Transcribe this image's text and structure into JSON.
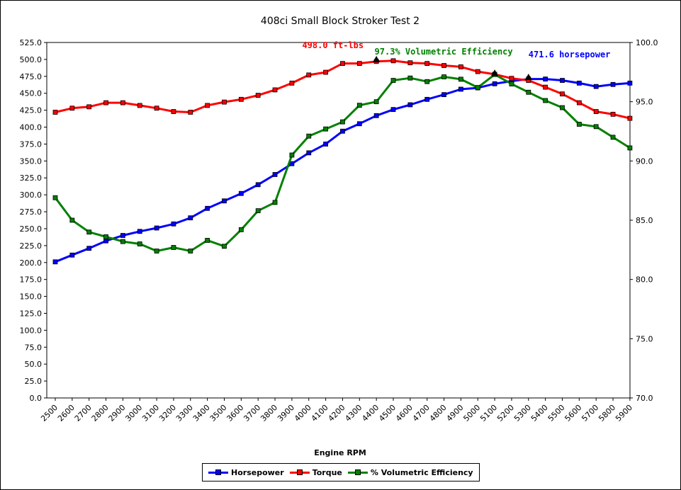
{
  "chart_data": {
    "type": "line",
    "title": "408ci Small Block Stroker Test 2",
    "xlabel": "Engine RPM",
    "categories": [
      "2500",
      "2600",
      "2700",
      "2800",
      "2900",
      "3000",
      "3100",
      "3200",
      "3300",
      "3400",
      "3500",
      "3600",
      "3700",
      "3800",
      "3900",
      "4000",
      "4100",
      "4200",
      "4300",
      "4400",
      "4500",
      "4600",
      "4700",
      "4800",
      "4900",
      "5000",
      "5100",
      "5200",
      "5300",
      "5400",
      "5500",
      "5600",
      "5700",
      "5800",
      "5900"
    ],
    "y_left": {
      "min": 0,
      "max": 525,
      "step": 25,
      "ticks": [
        "0.0",
        "25.0",
        "50.0",
        "75.0",
        "100.0",
        "125.0",
        "150.0",
        "175.0",
        "200.0",
        "225.0",
        "250.0",
        "275.0",
        "300.0",
        "325.0",
        "350.0",
        "375.0",
        "400.0",
        "425.0",
        "450.0",
        "475.0",
        "500.0",
        "525.0"
      ]
    },
    "y_right": {
      "min": 70,
      "max": 100,
      "step": 5,
      "ticks": [
        "70.0",
        "75.0",
        "80.0",
        "85.0",
        "90.0",
        "95.0",
        "100.0"
      ]
    },
    "grid": false,
    "legend_position": "bottom",
    "series": [
      {
        "name": "Horsepower",
        "axis": "left",
        "color": "#0000ff",
        "values": [
          201,
          211,
          221,
          232,
          240,
          246,
          251,
          257,
          266,
          280,
          291,
          302,
          315,
          330,
          346,
          362,
          375,
          394,
          405,
          417,
          426,
          433,
          441,
          448,
          456,
          458,
          464,
          468,
          471,
          471,
          469,
          465,
          460,
          463,
          465
        ]
      },
      {
        "name": "Torque",
        "axis": "left",
        "color": "#ff0000",
        "values": [
          422,
          428,
          430,
          436,
          436,
          432,
          428,
          423,
          422,
          432,
          437,
          441,
          447,
          455,
          465,
          477,
          481,
          494,
          494,
          497,
          498,
          495,
          494,
          491,
          489,
          482,
          478,
          472,
          469,
          459,
          449,
          436,
          423,
          419,
          413
        ]
      },
      {
        "name": "% Volumetric Efficiency",
        "axis": "right",
        "color": "#008000",
        "values": [
          86.9,
          85.0,
          84.0,
          83.6,
          83.2,
          83.0,
          82.4,
          82.7,
          82.4,
          83.3,
          82.8,
          84.2,
          85.8,
          86.5,
          90.5,
          92.1,
          92.7,
          93.3,
          94.7,
          95.0,
          96.8,
          97.0,
          96.7,
          97.1,
          96.9,
          96.2,
          97.3,
          96.5,
          95.8,
          95.1,
          94.5,
          93.1,
          92.9,
          92.0,
          91.1
        ]
      }
    ],
    "annotations": [
      {
        "text": "498.0 ft-lbs",
        "series": "Torque",
        "x": "4400",
        "y": 498.0,
        "color": "#ff0000"
      },
      {
        "text": "97.3% Volumetric Efficiency",
        "series": "% Volumetric Efficiency",
        "x": "5100",
        "y": 97.3,
        "color": "#008000"
      },
      {
        "text": "471.6 horsepower",
        "series": "Horsepower",
        "x": "5300",
        "y": 471.6,
        "color": "#0000ff"
      }
    ]
  }
}
